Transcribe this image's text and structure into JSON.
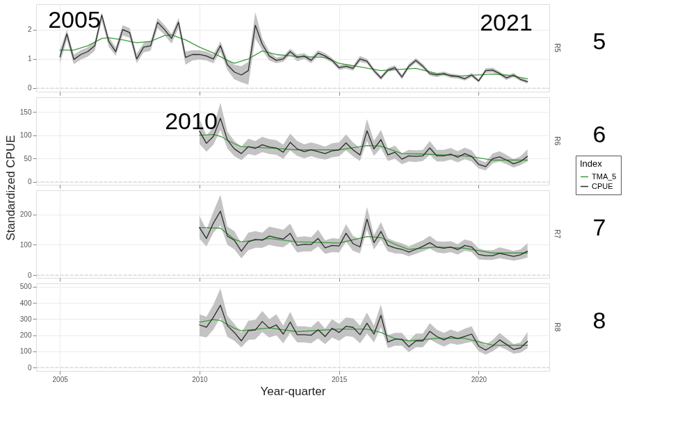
{
  "chart_data": [
    {
      "type": "line",
      "xlim": [
        2004.15,
        2022.53
      ],
      "xticks": [
        2005,
        2010,
        2015,
        2020
      ],
      "ylim": [
        -0.12,
        2.87
      ],
      "yticks": [
        0,
        1,
        2
      ],
      "grid": true,
      "tick_labels": "y",
      "x": [
        2005,
        2005.25,
        2005.5,
        2005.75,
        2006,
        2006.25,
        2006.5,
        2006.75,
        2007,
        2007.25,
        2007.5,
        2007.75,
        2008,
        2008.25,
        2008.5,
        2008.75,
        2009,
        2009.25,
        2009.5,
        2009.75,
        2010,
        2010.25,
        2010.5,
        2010.75,
        2011,
        2011.25,
        2011.5,
        2011.75,
        2012,
        2012.25,
        2012.5,
        2012.75,
        2013,
        2013.25,
        2013.5,
        2013.75,
        2014,
        2014.25,
        2014.5,
        2014.75,
        2015,
        2015.25,
        2015.5,
        2015.75,
        2016,
        2016.25,
        2016.5,
        2016.75,
        2017,
        2017.25,
        2017.5,
        2017.75,
        2018,
        2018.25,
        2018.5,
        2018.75,
        2019,
        2019.25,
        2019.5,
        2019.75,
        2020,
        2020.25,
        2020.5,
        2020.75,
        2021,
        2021.25,
        2021.5,
        2021.75
      ],
      "series": [
        {
          "name": "TMA_5",
          "color": "#3d9a3d",
          "x": [
            2005,
            2005.5,
            2006,
            2006.5,
            2006.75,
            2007.25,
            2007.75,
            2008.25,
            2008.75,
            2009,
            2009.5,
            2010,
            2010.5,
            2011,
            2011.25,
            2011.75,
            2012.25,
            2012.75,
            2013.5,
            2014.5,
            2015,
            2016.5,
            2017.75,
            2018.5,
            2019.25,
            2020.5,
            2021,
            2021.75
          ],
          "values": [
            1.3,
            1.3,
            1.45,
            1.7,
            1.72,
            1.65,
            1.55,
            1.6,
            1.8,
            1.82,
            1.65,
            1.4,
            1.2,
            0.95,
            0.85,
            1.0,
            1.27,
            1.15,
            1.08,
            1.05,
            0.85,
            0.6,
            0.68,
            0.5,
            0.41,
            0.48,
            0.45,
            0.32
          ]
        },
        {
          "name": "CPUE",
          "color": "#2b2b2b",
          "values": [
            1.07,
            1.85,
            0.98,
            1.15,
            1.25,
            1.45,
            2.5,
            1.6,
            1.25,
            2.0,
            1.9,
            1.0,
            1.4,
            1.45,
            2.25,
            2.0,
            1.7,
            2.25,
            1.05,
            1.15,
            1.15,
            1.1,
            1.0,
            1.45,
            0.8,
            0.55,
            0.45,
            0.6,
            2.15,
            1.5,
            1.1,
            0.95,
            1.0,
            1.25,
            1.05,
            1.1,
            0.95,
            1.2,
            1.1,
            0.95,
            0.7,
            0.75,
            0.68,
            1.0,
            0.92,
            0.6,
            0.35,
            0.62,
            0.7,
            0.38,
            0.75,
            0.95,
            0.75,
            0.5,
            0.45,
            0.5,
            0.42,
            0.4,
            0.32,
            0.45,
            0.25,
            0.6,
            0.62,
            0.5,
            0.35,
            0.45,
            0.3,
            0.22
          ],
          "lower": [
            0.85,
            1.65,
            0.82,
            0.98,
            1.08,
            1.28,
            2.3,
            1.42,
            1.1,
            1.8,
            1.72,
            0.85,
            1.22,
            1.28,
            2.05,
            1.82,
            1.52,
            2.05,
            0.8,
            0.95,
            0.98,
            0.95,
            0.85,
            1.25,
            0.62,
            0.3,
            0.2,
            0.12,
            1.7,
            1.3,
            0.95,
            0.85,
            0.9,
            1.15,
            0.92,
            1.0,
            0.85,
            1.1,
            1.0,
            0.87,
            0.62,
            0.67,
            0.6,
            0.9,
            0.84,
            0.52,
            0.28,
            0.55,
            0.62,
            0.3,
            0.67,
            0.87,
            0.67,
            0.43,
            0.38,
            0.43,
            0.35,
            0.33,
            0.26,
            0.38,
            0.19,
            0.52,
            0.54,
            0.43,
            0.28,
            0.38,
            0.24,
            0.16
          ],
          "upper": [
            1.3,
            2.0,
            1.15,
            1.3,
            1.4,
            1.6,
            2.6,
            1.75,
            1.4,
            2.15,
            2.05,
            1.18,
            1.55,
            1.6,
            2.4,
            2.15,
            1.85,
            2.4,
            1.25,
            1.3,
            1.3,
            1.25,
            1.15,
            1.6,
            0.98,
            0.8,
            0.75,
            0.9,
            2.6,
            1.7,
            1.25,
            1.05,
            1.1,
            1.35,
            1.15,
            1.2,
            1.05,
            1.3,
            1.2,
            1.03,
            0.78,
            0.83,
            0.76,
            1.1,
            1.0,
            0.68,
            0.42,
            0.7,
            0.78,
            0.46,
            0.83,
            1.03,
            0.83,
            0.57,
            0.52,
            0.57,
            0.49,
            0.47,
            0.38,
            0.52,
            0.31,
            0.68,
            0.7,
            0.57,
            0.42,
            0.52,
            0.36,
            0.28
          ]
        }
      ],
      "ref_lines": [
        {
          "axis": "y",
          "value": 0,
          "color": "#cccccc",
          "line_style": "dashed"
        }
      ],
      "legend_title": "Index",
      "legend": "right",
      "annotations": [
        "2005",
        "2021",
        "R5",
        "5"
      ]
    },
    {
      "type": "line",
      "ylabel": "Standardized CPUE",
      "legend": "right",
      "xlim": [
        2004.15,
        2022.53
      ],
      "xticks": [
        2005,
        2010,
        2015,
        2020
      ],
      "ylim": [
        -6,
        182
      ],
      "yticks": [
        0,
        50,
        100,
        150
      ],
      "grid": true,
      "tick_labels": "y",
      "x": [
        2010,
        2010.25,
        2010.5,
        2010.75,
        2011,
        2011.25,
        2011.5,
        2011.75,
        2012,
        2012.25,
        2012.5,
        2012.75,
        2013,
        2013.25,
        2013.5,
        2013.75,
        2014,
        2014.25,
        2014.5,
        2014.75,
        2015,
        2015.25,
        2015.5,
        2015.75,
        2016,
        2016.25,
        2016.5,
        2016.75,
        2017,
        2017.25,
        2017.5,
        2017.75,
        2018,
        2018.25,
        2018.5,
        2018.75,
        2019,
        2019.25,
        2019.5,
        2019.75,
        2020,
        2020.25,
        2020.5,
        2020.75,
        2021,
        2021.25,
        2021.5,
        2021.75
      ],
      "series": [
        {
          "name": "TMA_5",
          "color": "#3d9a3d",
          "x": [
            2010,
            2010.5,
            2010.75,
            2011.25,
            2011.5,
            2012.5,
            2013.5,
            2015,
            2016,
            2016.5,
            2017.25,
            2018,
            2019.5,
            2020.5,
            2021.75
          ],
          "values": [
            100,
            102,
            98,
            82,
            76,
            73,
            69,
            69,
            78,
            77,
            61,
            60,
            56,
            47,
            47
          ]
        },
        {
          "name": "CPUE",
          "color": "#2b2b2b",
          "values": [
            109,
            83,
            98,
            137,
            90,
            71,
            61,
            76,
            72,
            80,
            75,
            73,
            64,
            85,
            71,
            65,
            69,
            65,
            61,
            67,
            69,
            84,
            69,
            58,
            110,
            71,
            91,
            58,
            64,
            49,
            56,
            55,
            56,
            73,
            56,
            56,
            60,
            53,
            61,
            55,
            38,
            33,
            50,
            54,
            47,
            39,
            44,
            55
          ],
          "lower": [
            82,
            65,
            80,
            112,
            72,
            55,
            47,
            60,
            57,
            64,
            60,
            58,
            50,
            68,
            56,
            51,
            55,
            51,
            48,
            53,
            55,
            68,
            55,
            45,
            88,
            56,
            73,
            45,
            50,
            38,
            44,
            43,
            45,
            58,
            44,
            44,
            48,
            42,
            49,
            44,
            29,
            25,
            40,
            44,
            38,
            31,
            36,
            44
          ],
          "upper": [
            135,
            100,
            118,
            170,
            108,
            88,
            76,
            93,
            88,
            97,
            92,
            90,
            80,
            104,
            88,
            81,
            85,
            81,
            76,
            83,
            85,
            102,
            85,
            73,
            135,
            88,
            112,
            72,
            78,
            62,
            69,
            68,
            69,
            88,
            69,
            69,
            73,
            66,
            74,
            68,
            48,
            42,
            61,
            66,
            58,
            49,
            55,
            70
          ]
        }
      ],
      "ref_lines": [
        {
          "axis": "y",
          "value": 0,
          "color": "#cccccc",
          "line_style": "dashed"
        }
      ],
      "annotations": [
        "2010",
        "R6",
        "6"
      ]
    },
    {
      "type": "line",
      "legend": "right",
      "xlim": [
        2004.15,
        2022.53
      ],
      "xticks": [
        2005,
        2010,
        2015,
        2020
      ],
      "ylim": [
        -9,
        280
      ],
      "yticks": [
        0,
        100,
        200
      ],
      "grid": true,
      "tick_labels": "y",
      "x": [
        2010,
        2010.25,
        2010.5,
        2010.75,
        2011,
        2011.25,
        2011.5,
        2011.75,
        2012,
        2012.25,
        2012.5,
        2012.75,
        2013,
        2013.25,
        2013.5,
        2013.75,
        2014,
        2014.25,
        2014.5,
        2014.75,
        2015,
        2015.25,
        2015.5,
        2015.75,
        2016,
        2016.25,
        2016.5,
        2016.75,
        2017,
        2017.25,
        2017.5,
        2017.75,
        2018,
        2018.25,
        2018.5,
        2018.75,
        2019,
        2019.25,
        2019.5,
        2019.75,
        2020,
        2020.25,
        2020.5,
        2020.75,
        2021,
        2021.25,
        2021.5,
        2021.75
      ],
      "series": [
        {
          "name": "TMA_5",
          "color": "#3d9a3d",
          "x": [
            2010,
            2010.75,
            2011.25,
            2011.5,
            2012.5,
            2013.5,
            2015,
            2016,
            2016.5,
            2017,
            2017.5,
            2018.5,
            2019.5,
            2020.5,
            2021.75
          ],
          "values": [
            157,
            155,
            118,
            110,
            121,
            110,
            106,
            127,
            124,
            102,
            85,
            93,
            89,
            73,
            73
          ]
        },
        {
          "name": "CPUE",
          "color": "#2b2b2b",
          "values": [
            157,
            121,
            172,
            211,
            129,
            115,
            79,
            110,
            118,
            115,
            129,
            123,
            119,
            138,
            98,
            102,
            101,
            121,
            90,
            98,
            96,
            138,
            104,
            93,
            185,
            107,
            144,
            98,
            90,
            85,
            76,
            85,
            95,
            107,
            93,
            89,
            93,
            84,
            98,
            93,
            68,
            64,
            64,
            72,
            67,
            62,
            67,
            79
          ],
          "lower": [
            120,
            95,
            140,
            165,
            100,
            85,
            55,
            82,
            90,
            90,
            100,
            95,
            92,
            108,
            75,
            78,
            78,
            95,
            70,
            76,
            75,
            110,
            80,
            72,
            150,
            85,
            118,
            78,
            72,
            70,
            62,
            70,
            78,
            88,
            75,
            72,
            76,
            68,
            80,
            76,
            52,
            50,
            50,
            56,
            52,
            48,
            52,
            58
          ],
          "upper": [
            195,
            150,
            210,
            265,
            160,
            145,
            105,
            140,
            145,
            140,
            160,
            155,
            150,
            170,
            125,
            128,
            125,
            150,
            115,
            122,
            120,
            168,
            130,
            118,
            225,
            132,
            175,
            122,
            112,
            105,
            95,
            105,
            115,
            130,
            112,
            110,
            112,
            102,
            118,
            112,
            88,
            82,
            82,
            92,
            86,
            80,
            85,
            105
          ]
        }
      ],
      "ref_lines": [
        {
          "axis": "y",
          "value": 0,
          "color": "#cccccc",
          "line_style": "dashed"
        }
      ],
      "annotations": [
        "R7",
        "7"
      ]
    },
    {
      "type": "line",
      "legend": "right",
      "xlabel": "Year-quarter",
      "xlim": [
        2004.15,
        2022.53
      ],
      "xticks": [
        2005,
        2010,
        2015,
        2020
      ],
      "ylim": [
        -21,
        521
      ],
      "yticks": [
        0,
        100,
        200,
        300,
        400,
        500
      ],
      "grid": true,
      "x": [
        2010,
        2010.25,
        2010.5,
        2010.75,
        2011,
        2011.25,
        2011.5,
        2011.75,
        2012,
        2012.25,
        2012.5,
        2012.75,
        2013,
        2013.25,
        2013.5,
        2013.75,
        2014,
        2014.25,
        2014.5,
        2014.75,
        2015,
        2015.25,
        2015.5,
        2015.75,
        2016,
        2016.25,
        2016.5,
        2016.75,
        2017,
        2017.25,
        2017.5,
        2017.75,
        2018,
        2018.25,
        2018.5,
        2018.75,
        2019,
        2019.25,
        2019.5,
        2019.75,
        2020,
        2020.25,
        2020.5,
        2020.75,
        2021,
        2021.25,
        2021.5,
        2021.75
      ],
      "series": [
        {
          "name": "TMA_5",
          "color": "#3d9a3d",
          "x": [
            2010,
            2010.5,
            2010.75,
            2011.25,
            2011.5,
            2012.5,
            2013.5,
            2015,
            2016,
            2016.5,
            2017,
            2017.5,
            2018.5,
            2019.5,
            2020.5,
            2021.75
          ],
          "values": [
            281,
            297,
            291,
            243,
            228,
            245,
            222,
            238,
            238,
            217,
            179,
            165,
            181,
            181,
            139,
            137
          ]
        },
        {
          "name": "CPUE",
          "color": "#2b2b2b",
          "values": [
            264,
            249,
            312,
            386,
            259,
            217,
            165,
            228,
            232,
            285,
            243,
            264,
            207,
            281,
            203,
            203,
            200,
            234,
            192,
            243,
            217,
            255,
            249,
            203,
            274,
            207,
            323,
            158,
            175,
            175,
            129,
            165,
            165,
            224,
            192,
            171,
            192,
            179,
            192,
            207,
            133,
            108,
            133,
            171,
            143,
            112,
            122,
            162
          ],
          "lower": [
            195,
            185,
            235,
            310,
            190,
            165,
            125,
            170,
            175,
            220,
            185,
            200,
            150,
            215,
            155,
            155,
            150,
            180,
            145,
            185,
            165,
            195,
            190,
            150,
            210,
            155,
            250,
            120,
            135,
            135,
            95,
            125,
            125,
            175,
            150,
            130,
            150,
            140,
            150,
            160,
            100,
            80,
            100,
            130,
            110,
            85,
            92,
            120
          ],
          "upper": [
            330,
            315,
            390,
            490,
            320,
            270,
            215,
            290,
            295,
            350,
            300,
            330,
            260,
            345,
            255,
            255,
            250,
            290,
            240,
            300,
            270,
            310,
            305,
            260,
            340,
            260,
            390,
            200,
            215,
            215,
            165,
            210,
            210,
            275,
            235,
            215,
            235,
            220,
            240,
            255,
            170,
            140,
            170,
            215,
            180,
            145,
            155,
            220
          ]
        }
      ],
      "ref_lines": [
        {
          "axis": "y",
          "value": 0,
          "color": "#cccccc",
          "line_style": "dashed"
        }
      ],
      "annotations": [
        "R8",
        "8"
      ]
    }
  ]
}
